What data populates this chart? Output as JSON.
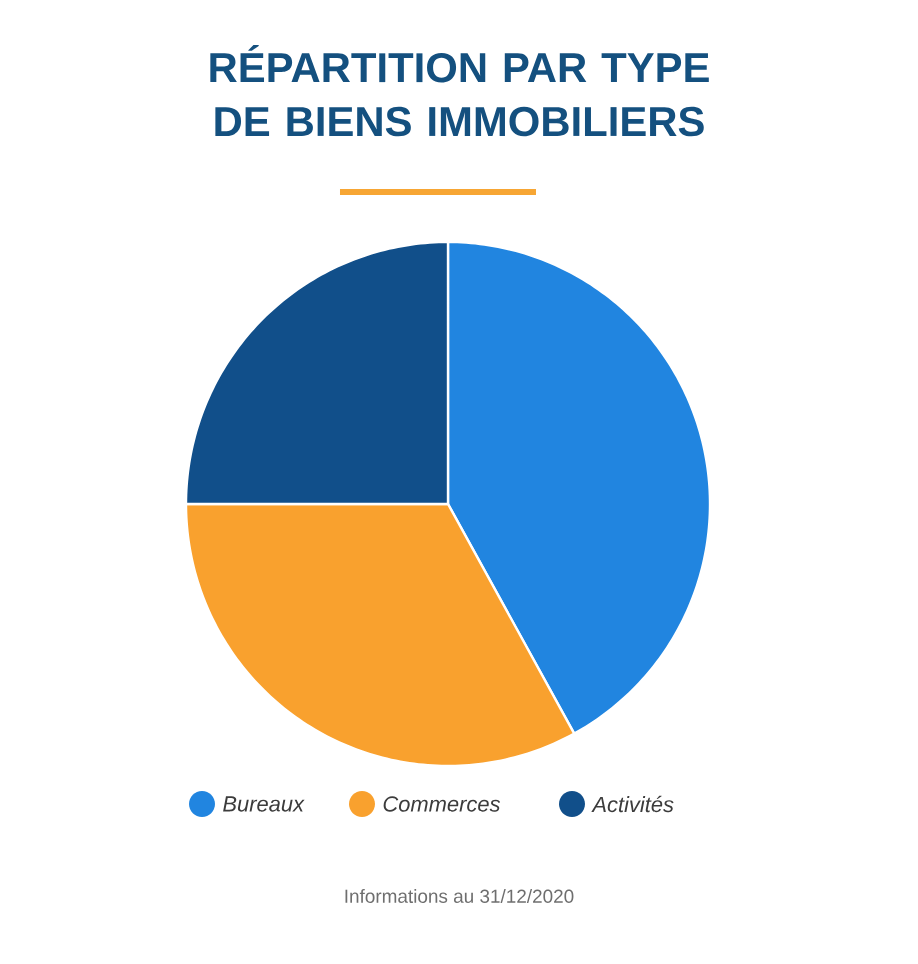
{
  "chart_data": {
    "type": "pie",
    "title": "RÉPARTITION PAR TYPE DE BIENS IMMOBILIERS",
    "categories": [
      "Bureaux",
      "Commerces",
      "Activités"
    ],
    "values": [
      42,
      33,
      25
    ],
    "colors": [
      "#2185e0",
      "#f9a12e",
      "#114f8a"
    ],
    "legend": "bottom",
    "annotations": [
      "Informations au 31/12/2020"
    ]
  }
}
